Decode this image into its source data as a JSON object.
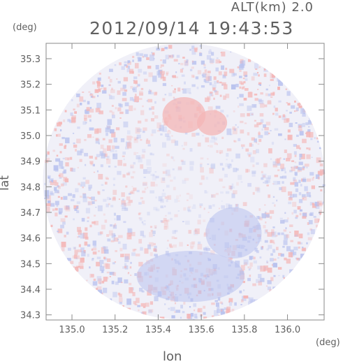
{
  "header": {
    "alt_label": "ALT(km) 2.0",
    "timestamp": "2012/09/14 19:43:53"
  },
  "axes": {
    "y_unit": "(deg)",
    "x_unit": "(deg)",
    "y_label": "lat",
    "x_label": "lon"
  },
  "chart_data": {
    "type": "heatmap",
    "title": "2012/09/14 19:43:53",
    "subtitle": "ALT(km) 2.0",
    "xlabel": "lon",
    "ylabel": "lat",
    "xlim": [
      134.88,
      136.17
    ],
    "ylim": [
      34.28,
      35.36
    ],
    "x_ticks": [
      "135.0",
      "135.2",
      "135.4",
      "135.6",
      "135.8",
      "136.0"
    ],
    "y_ticks": [
      "34.3",
      "34.4",
      "34.5",
      "34.6",
      "34.7",
      "34.8",
      "34.9",
      "35.0",
      "35.1",
      "35.2",
      "35.3"
    ],
    "radar_center": {
      "lon": 135.52,
      "lat": 34.82
    },
    "radar_radius_deg": {
      "lon": 0.655,
      "lat": 0.54
    },
    "features": [
      {
        "kind": "positive",
        "lon": 135.52,
        "lat": 35.08,
        "r_lon": 0.1,
        "r_lat": 0.07
      },
      {
        "kind": "positive",
        "lon": 135.65,
        "lat": 35.05,
        "r_lon": 0.07,
        "r_lat": 0.05
      },
      {
        "kind": "negative",
        "lon": 135.75,
        "lat": 34.62,
        "r_lon": 0.13,
        "r_lat": 0.1
      },
      {
        "kind": "negative",
        "lon": 135.55,
        "lat": 34.45,
        "r_lon": 0.25,
        "r_lat": 0.1
      }
    ],
    "colors": {
      "positive": "#f4b6b6",
      "negative": "#b9c2ee",
      "neutral": "#f0f0f8"
    },
    "grid": false
  }
}
